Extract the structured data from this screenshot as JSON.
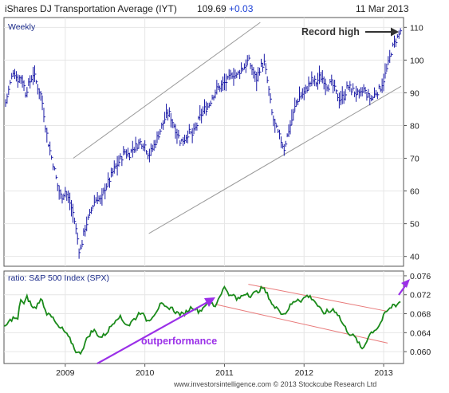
{
  "header": {
    "title": "iShares DJ Transportation Average (IYT)",
    "last_price": "109.69",
    "change": "+0.03",
    "date": "11 Mar 2013"
  },
  "footer": {
    "credit": "www.investorsintelligence.com © 2013 Stockcube Research Ltd"
  },
  "chart_data": [
    {
      "type": "bar",
      "panel_label": "Weekly",
      "ylim": [
        37,
        113
      ],
      "y_ticks": [
        "40",
        "50",
        "60",
        "70",
        "80",
        "90",
        "100",
        "110"
      ],
      "x_ticks": [
        "2009",
        "2010",
        "2011",
        "2012",
        "2013"
      ],
      "x_ticks_year": [
        2009,
        2010,
        2011,
        2012,
        2013
      ],
      "xlim": [
        2008.23,
        2013.25
      ],
      "annotation": "Record high",
      "anchors": [
        [
          2008.25,
          87
        ],
        [
          2008.3,
          92
        ],
        [
          2008.35,
          97
        ],
        [
          2008.4,
          94
        ],
        [
          2008.45,
          95
        ],
        [
          2008.5,
          90
        ],
        [
          2008.55,
          93
        ],
        [
          2008.6,
          96
        ],
        [
          2008.65,
          92
        ],
        [
          2008.7,
          89
        ],
        [
          2008.75,
          80
        ],
        [
          2008.8,
          73
        ],
        [
          2008.85,
          68
        ],
        [
          2008.9,
          62
        ],
        [
          2008.95,
          58
        ],
        [
          2009.0,
          60
        ],
        [
          2009.05,
          57
        ],
        [
          2009.1,
          53
        ],
        [
          2009.15,
          46
        ],
        [
          2009.18,
          41
        ],
        [
          2009.2,
          43
        ],
        [
          2009.25,
          49
        ],
        [
          2009.3,
          52
        ],
        [
          2009.35,
          56
        ],
        [
          2009.4,
          58
        ],
        [
          2009.45,
          57
        ],
        [
          2009.5,
          61
        ],
        [
          2009.55,
          63
        ],
        [
          2009.6,
          66
        ],
        [
          2009.65,
          68
        ],
        [
          2009.7,
          70
        ],
        [
          2009.75,
          72
        ],
        [
          2009.8,
          71
        ],
        [
          2009.85,
          73
        ],
        [
          2009.9,
          74
        ],
        [
          2009.95,
          75
        ],
        [
          2010.0,
          74
        ],
        [
          2010.05,
          71
        ],
        [
          2010.1,
          73
        ],
        [
          2010.15,
          76
        ],
        [
          2010.2,
          79
        ],
        [
          2010.25,
          82
        ],
        [
          2010.3,
          84
        ],
        [
          2010.35,
          81
        ],
        [
          2010.4,
          78
        ],
        [
          2010.45,
          75
        ],
        [
          2010.5,
          76
        ],
        [
          2010.55,
          78
        ],
        [
          2010.6,
          77
        ],
        [
          2010.65,
          80
        ],
        [
          2010.7,
          83
        ],
        [
          2010.75,
          85
        ],
        [
          2010.8,
          86
        ],
        [
          2010.85,
          89
        ],
        [
          2010.9,
          91
        ],
        [
          2010.95,
          92
        ],
        [
          2011.0,
          93
        ],
        [
          2011.05,
          94
        ],
        [
          2011.1,
          96
        ],
        [
          2011.15,
          95
        ],
        [
          2011.2,
          97
        ],
        [
          2011.25,
          98
        ],
        [
          2011.3,
          100
        ],
        [
          2011.35,
          97
        ],
        [
          2011.4,
          94
        ],
        [
          2011.45,
          98
        ],
        [
          2011.5,
          99
        ],
        [
          2011.55,
          92
        ],
        [
          2011.6,
          83
        ],
        [
          2011.65,
          79
        ],
        [
          2011.7,
          76
        ],
        [
          2011.75,
          73
        ],
        [
          2011.8,
          78
        ],
        [
          2011.85,
          82
        ],
        [
          2011.9,
          87
        ],
        [
          2011.95,
          89
        ],
        [
          2012.0,
          90
        ],
        [
          2012.05,
          92
        ],
        [
          2012.1,
          94
        ],
        [
          2012.15,
          93
        ],
        [
          2012.2,
          95
        ],
        [
          2012.25,
          94
        ],
        [
          2012.3,
          92
        ],
        [
          2012.35,
          93
        ],
        [
          2012.4,
          90
        ],
        [
          2012.45,
          88
        ],
        [
          2012.5,
          89
        ],
        [
          2012.55,
          92
        ],
        [
          2012.6,
          91
        ],
        [
          2012.65,
          90
        ],
        [
          2012.7,
          89
        ],
        [
          2012.75,
          91
        ],
        [
          2012.8,
          89
        ],
        [
          2012.85,
          88
        ],
        [
          2012.9,
          90
        ],
        [
          2012.95,
          91
        ],
        [
          2013.0,
          94
        ],
        [
          2013.05,
          98
        ],
        [
          2013.1,
          103
        ],
        [
          2013.15,
          106
        ],
        [
          2013.2,
          108
        ],
        [
          2013.22,
          109.7
        ]
      ],
      "trend_lines": [
        [
          [
            2009.1,
            70
          ],
          [
            2011.45,
            111.5
          ]
        ],
        [
          [
            2010.05,
            47
          ],
          [
            2013.22,
            92
          ]
        ]
      ]
    },
    {
      "type": "line",
      "panel_label": "ratio: S&P 500 Index (SPX)",
      "ylim": [
        0.0575,
        0.077
      ],
      "y_ticks": [
        "0.060",
        "0.064",
        "0.068",
        "0.072",
        "0.076"
      ],
      "annotation": "outperformance",
      "anchors": [
        [
          2008.23,
          0.065
        ],
        [
          2008.28,
          0.066
        ],
        [
          2008.32,
          0.0668
        ],
        [
          2008.36,
          0.0672
        ],
        [
          2008.4,
          0.0665
        ],
        [
          2008.44,
          0.0712
        ],
        [
          2008.48,
          0.07
        ],
        [
          2008.52,
          0.0715
        ],
        [
          2008.56,
          0.0703
        ],
        [
          2008.6,
          0.069
        ],
        [
          2008.64,
          0.0695
        ],
        [
          2008.68,
          0.071
        ],
        [
          2008.72,
          0.0705
        ],
        [
          2008.76,
          0.068
        ],
        [
          2008.8,
          0.0685
        ],
        [
          2008.84,
          0.067
        ],
        [
          2008.88,
          0.066
        ],
        [
          2008.92,
          0.065
        ],
        [
          2008.96,
          0.0648
        ],
        [
          2009.0,
          0.064
        ],
        [
          2009.04,
          0.063
        ],
        [
          2009.08,
          0.062
        ],
        [
          2009.12,
          0.0605
        ],
        [
          2009.16,
          0.0595
        ],
        [
          2009.2,
          0.06
        ],
        [
          2009.24,
          0.0615
        ],
        [
          2009.28,
          0.063
        ],
        [
          2009.32,
          0.064
        ],
        [
          2009.36,
          0.0645
        ],
        [
          2009.4,
          0.0638
        ],
        [
          2009.44,
          0.063
        ],
        [
          2009.48,
          0.0634
        ],
        [
          2009.52,
          0.064
        ],
        [
          2009.56,
          0.065
        ],
        [
          2009.6,
          0.066
        ],
        [
          2009.64,
          0.067
        ],
        [
          2009.68,
          0.0675
        ],
        [
          2009.72,
          0.0665
        ],
        [
          2009.76,
          0.066
        ],
        [
          2009.8,
          0.0655
        ],
        [
          2009.84,
          0.0665
        ],
        [
          2009.88,
          0.067
        ],
        [
          2009.92,
          0.068
        ],
        [
          2009.96,
          0.0685
        ],
        [
          2010.0,
          0.067
        ],
        [
          2010.04,
          0.0665
        ],
        [
          2010.08,
          0.0672
        ],
        [
          2010.12,
          0.068
        ],
        [
          2010.16,
          0.069
        ],
        [
          2010.2,
          0.07
        ],
        [
          2010.24,
          0.0695
        ],
        [
          2010.28,
          0.069
        ],
        [
          2010.32,
          0.0695
        ],
        [
          2010.36,
          0.0688
        ],
        [
          2010.4,
          0.0682
        ],
        [
          2010.44,
          0.068
        ],
        [
          2010.48,
          0.0678
        ],
        [
          2010.52,
          0.0684
        ],
        [
          2010.56,
          0.069
        ],
        [
          2010.6,
          0.0695
        ],
        [
          2010.64,
          0.069
        ],
        [
          2010.68,
          0.0685
        ],
        [
          2010.72,
          0.069
        ],
        [
          2010.76,
          0.07
        ],
        [
          2010.8,
          0.0705
        ],
        [
          2010.84,
          0.0702
        ],
        [
          2010.88,
          0.0695
        ],
        [
          2010.92,
          0.071
        ],
        [
          2010.96,
          0.0725
        ],
        [
          2011.0,
          0.0735
        ],
        [
          2011.04,
          0.0728
        ],
        [
          2011.08,
          0.0715
        ],
        [
          2011.12,
          0.072
        ],
        [
          2011.16,
          0.0708
        ],
        [
          2011.2,
          0.0715
        ],
        [
          2011.24,
          0.072
        ],
        [
          2011.28,
          0.0725
        ],
        [
          2011.32,
          0.0718
        ],
        [
          2011.36,
          0.0722
        ],
        [
          2011.4,
          0.0725
        ],
        [
          2011.44,
          0.073
        ],
        [
          2011.48,
          0.0735
        ],
        [
          2011.52,
          0.0725
        ],
        [
          2011.56,
          0.0715
        ],
        [
          2011.6,
          0.07
        ],
        [
          2011.64,
          0.069
        ],
        [
          2011.68,
          0.0693
        ],
        [
          2011.72,
          0.068
        ],
        [
          2011.76,
          0.068
        ],
        [
          2011.8,
          0.069
        ],
        [
          2011.84,
          0.07
        ],
        [
          2011.88,
          0.0705
        ],
        [
          2011.92,
          0.0712
        ],
        [
          2011.96,
          0.0708
        ],
        [
          2012.0,
          0.0713
        ],
        [
          2012.04,
          0.0718
        ],
        [
          2012.08,
          0.0715
        ],
        [
          2012.12,
          0.071
        ],
        [
          2012.16,
          0.07
        ],
        [
          2012.2,
          0.069
        ],
        [
          2012.24,
          0.068
        ],
        [
          2012.28,
          0.0685
        ],
        [
          2012.32,
          0.0683
        ],
        [
          2012.36,
          0.069
        ],
        [
          2012.4,
          0.0685
        ],
        [
          2012.44,
          0.0675
        ],
        [
          2012.48,
          0.066
        ],
        [
          2012.52,
          0.065
        ],
        [
          2012.56,
          0.064
        ],
        [
          2012.6,
          0.0635
        ],
        [
          2012.64,
          0.063
        ],
        [
          2012.68,
          0.062
        ],
        [
          2012.72,
          0.0605
        ],
        [
          2012.76,
          0.0612
        ],
        [
          2012.8,
          0.063
        ],
        [
          2012.84,
          0.064
        ],
        [
          2012.88,
          0.0645
        ],
        [
          2012.92,
          0.065
        ],
        [
          2012.96,
          0.066
        ],
        [
          2013.0,
          0.0675
        ],
        [
          2013.04,
          0.0685
        ],
        [
          2013.08,
          0.069
        ],
        [
          2013.12,
          0.07
        ],
        [
          2013.16,
          0.0698
        ],
        [
          2013.2,
          0.0705
        ],
        [
          2013.22,
          0.0708
        ]
      ],
      "trend_lines": [
        [
          [
            2011.3,
            0.0742
          ],
          [
            2013.05,
            0.0685
          ]
        ],
        [
          [
            2010.88,
            0.07
          ],
          [
            2013.05,
            0.0618
          ]
        ]
      ]
    }
  ],
  "colors": {
    "price_bars": "#1a1aa6",
    "ratio_line": "#1a8a1a",
    "price_trend": "#9a9a9a",
    "ratio_trend": "#e87a7a",
    "annotation_arrow": "#333333",
    "outperformance": "#9b30e8"
  }
}
